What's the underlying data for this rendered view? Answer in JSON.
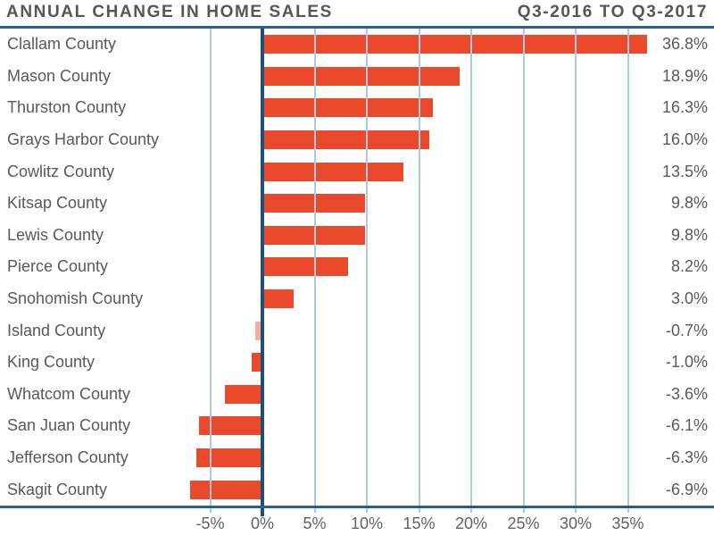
{
  "header": {
    "title": "ANNUAL CHANGE IN HOME SALES",
    "subtitle": "Q3-2016 TO Q3-2017"
  },
  "chart_data": {
    "type": "bar",
    "orientation": "horizontal",
    "title": "ANNUAL CHANGE IN HOME SALES",
    "subtitle": "Q3-2016 TO Q3-2017",
    "categories": [
      "Clallam County",
      "Mason County",
      "Thurston County",
      "Grays Harbor County",
      "Cowlitz County",
      "Kitsap County",
      "Lewis County",
      "Pierce County",
      "Snohomish County",
      "Island County",
      "King County",
      "Whatcom County",
      "San Juan County",
      "Jefferson County",
      "Skagit County"
    ],
    "values": [
      36.8,
      18.9,
      16.3,
      16.0,
      13.5,
      9.8,
      9.8,
      8.2,
      3.0,
      -0.7,
      -1.0,
      -3.6,
      -6.1,
      -6.3,
      -6.9
    ],
    "rows": [
      {
        "county": "Clallam County",
        "value": 36.8,
        "display": "36.8%"
      },
      {
        "county": "Mason County",
        "value": 18.9,
        "display": "18.9%"
      },
      {
        "county": "Thurston County",
        "value": 16.3,
        "display": "16.3%"
      },
      {
        "county": "Grays Harbor County",
        "value": 16.0,
        "display": "16.0%"
      },
      {
        "county": "Cowlitz County",
        "value": 13.5,
        "display": "13.5%"
      },
      {
        "county": "Kitsap County",
        "value": 9.8,
        "display": "9.8%"
      },
      {
        "county": "Lewis County",
        "value": 9.8,
        "display": "9.8%"
      },
      {
        "county": "Pierce County",
        "value": 8.2,
        "display": "8.2%"
      },
      {
        "county": "Snohomish County",
        "value": 3.0,
        "display": "3.0%"
      },
      {
        "county": "Island County",
        "value": -0.7,
        "display": "-0.7%",
        "faded": true
      },
      {
        "county": "King County",
        "value": -1.0,
        "display": "-1.0%"
      },
      {
        "county": "Whatcom County",
        "value": -3.6,
        "display": "-3.6%"
      },
      {
        "county": "San Juan County",
        "value": -6.1,
        "display": "-6.1%"
      },
      {
        "county": "Jefferson County",
        "value": -6.3,
        "display": "-6.3%"
      },
      {
        "county": "Skagit County",
        "value": -6.9,
        "display": "-6.9%"
      }
    ],
    "x_ticks": [
      {
        "v": -5,
        "label": "-5%"
      },
      {
        "v": 0,
        "label": "0%"
      },
      {
        "v": 5,
        "label": "5%"
      },
      {
        "v": 10,
        "label": "10%"
      },
      {
        "v": 15,
        "label": "15%"
      },
      {
        "v": 20,
        "label": "20%"
      },
      {
        "v": 25,
        "label": "25%"
      },
      {
        "v": 30,
        "label": "30%"
      },
      {
        "v": 35,
        "label": "35%"
      }
    ],
    "xlim": [
      -25,
      43
    ],
    "grid": true,
    "legend": false,
    "bar_color": "#E94A2B",
    "faded_bar_color": "#F2AEA0",
    "gridline_color": "#AEC8E0",
    "zero_line_color": "#1F4E79",
    "rule_color": "#2B5F94",
    "text_color": "#58595B"
  }
}
